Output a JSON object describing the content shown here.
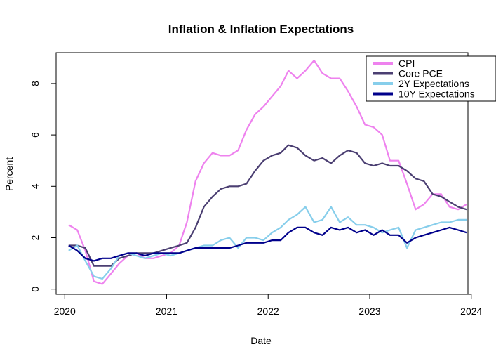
{
  "chart_data": {
    "type": "line",
    "title": "Inflation & Inflation Expectations",
    "xlabel": "Date",
    "ylabel": "Percent",
    "xlim": [
      "2019-12-01",
      "2023-12-20"
    ],
    "ylim": [
      -0.2,
      9.2
    ],
    "x_ticks": [
      "2020",
      "2021",
      "2022",
      "2023",
      "2024"
    ],
    "y_ticks": [
      0,
      2,
      4,
      6,
      8
    ],
    "grid": false,
    "legend_position": "top-right",
    "x": [
      "2020-01",
      "2020-02",
      "2020-03",
      "2020-04",
      "2020-05",
      "2020-06",
      "2020-07",
      "2020-08",
      "2020-09",
      "2020-10",
      "2020-11",
      "2020-12",
      "2021-01",
      "2021-02",
      "2021-03",
      "2021-04",
      "2021-05",
      "2021-06",
      "2021-07",
      "2021-08",
      "2021-09",
      "2021-10",
      "2021-11",
      "2021-12",
      "2022-01",
      "2022-02",
      "2022-03",
      "2022-04",
      "2022-05",
      "2022-06",
      "2022-07",
      "2022-08",
      "2022-09",
      "2022-10",
      "2022-11",
      "2022-12",
      "2023-01",
      "2023-02",
      "2023-03",
      "2023-04",
      "2023-05",
      "2023-06",
      "2023-07",
      "2023-08",
      "2023-09",
      "2023-10",
      "2023-11",
      "2023-12"
    ],
    "series": [
      {
        "name": "CPI",
        "color": "#ee82ee",
        "values": [
          2.5,
          2.3,
          1.5,
          0.3,
          0.2,
          0.6,
          1.0,
          1.3,
          1.4,
          1.2,
          1.2,
          1.3,
          1.4,
          1.7,
          2.6,
          4.2,
          4.9,
          5.3,
          5.2,
          5.2,
          5.4,
          6.2,
          6.8,
          7.1,
          7.5,
          7.9,
          8.5,
          8.2,
          8.5,
          8.9,
          8.4,
          8.2,
          8.2,
          7.7,
          7.1,
          6.4,
          6.3,
          6.0,
          5.0,
          5.0,
          4.1,
          3.1,
          3.3,
          3.7,
          3.7,
          3.2,
          3.1,
          3.3
        ]
      },
      {
        "name": "Core PCE",
        "color": "#4b3f72",
        "values": [
          1.7,
          1.7,
          1.6,
          0.9,
          0.9,
          0.9,
          1.2,
          1.3,
          1.4,
          1.4,
          1.4,
          1.5,
          1.6,
          1.7,
          1.8,
          2.4,
          3.2,
          3.6,
          3.9,
          4.0,
          4.0,
          4.1,
          4.6,
          5.0,
          5.2,
          5.3,
          5.6,
          5.5,
          5.2,
          5.0,
          5.1,
          4.9,
          5.2,
          5.4,
          5.3,
          4.9,
          4.8,
          4.9,
          4.8,
          4.8,
          4.6,
          4.3,
          4.2,
          3.7,
          3.6,
          3.4,
          3.2,
          3.1
        ]
      },
      {
        "name": "2Y Expectations",
        "color": "#87ceeb",
        "values": [
          1.5,
          1.7,
          1.1,
          0.5,
          0.4,
          0.8,
          1.3,
          1.4,
          1.3,
          1.2,
          1.3,
          1.4,
          1.3,
          1.4,
          1.5,
          1.6,
          1.7,
          1.7,
          1.9,
          2.0,
          1.6,
          2.0,
          2.0,
          1.9,
          2.2,
          2.4,
          2.7,
          2.9,
          3.2,
          2.6,
          2.7,
          3.2,
          2.6,
          2.8,
          2.5,
          2.5,
          2.4,
          2.2,
          2.3,
          2.4,
          1.6,
          2.3,
          2.4,
          2.5,
          2.6,
          2.6,
          2.7,
          2.7
        ]
      },
      {
        "name": "10Y Expectations",
        "color": "#00008b",
        "values": [
          1.7,
          1.5,
          1.2,
          1.1,
          1.2,
          1.2,
          1.3,
          1.4,
          1.4,
          1.3,
          1.4,
          1.4,
          1.4,
          1.4,
          1.5,
          1.6,
          1.6,
          1.6,
          1.6,
          1.6,
          1.7,
          1.8,
          1.8,
          1.8,
          1.9,
          1.9,
          2.2,
          2.4,
          2.4,
          2.2,
          2.1,
          2.4,
          2.3,
          2.4,
          2.2,
          2.3,
          2.1,
          2.3,
          2.1,
          2.1,
          1.8,
          2.0,
          2.1,
          2.2,
          2.3,
          2.4,
          2.3,
          2.2
        ]
      }
    ]
  }
}
